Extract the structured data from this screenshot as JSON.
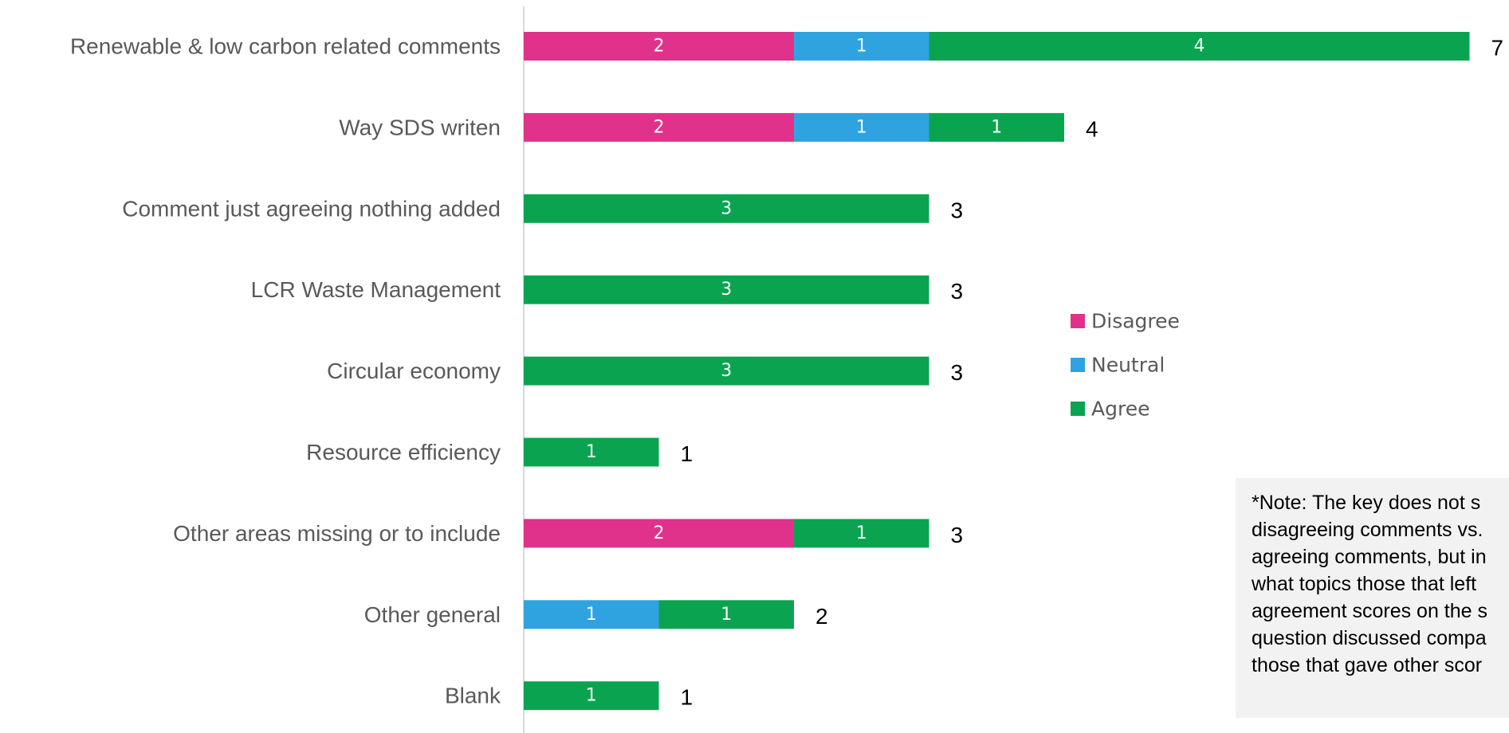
{
  "chart_data": {
    "type": "bar",
    "orientation": "horizontal",
    "stacked": true,
    "categories": [
      "Renewable & low carbon related comments",
      "Way SDS writen",
      "Comment just agreeing nothing added",
      "LCR Waste Management",
      "Circular economy",
      "Resource efficiency",
      "Other areas missing or to include",
      "Other general",
      "Blank"
    ],
    "series": [
      {
        "name": "Disagree",
        "color": "#e0328a",
        "values": [
          2,
          2,
          0,
          0,
          0,
          0,
          2,
          0,
          0
        ]
      },
      {
        "name": "Neutral",
        "color": "#2ea3e0",
        "values": [
          1,
          1,
          0,
          0,
          0,
          0,
          0,
          1,
          0
        ]
      },
      {
        "name": "Agree",
        "color": "#0aa451",
        "values": [
          4,
          1,
          3,
          3,
          3,
          1,
          1,
          1,
          1
        ]
      }
    ],
    "totals": [
      7,
      4,
      3,
      3,
      3,
      1,
      3,
      2,
      1
    ],
    "xlim": [
      0,
      7
    ],
    "grid": false,
    "data_labels": true,
    "legend_position": "center-right",
    "title": "",
    "xlabel": "",
    "ylabel": ""
  },
  "note": {
    "text": "*Note: The key does not s\ndisagreeing comments vs.\nagreeing comments, but in\nwhat topics those that left\nagreement scores on the s\nquestion discussed compa\nthose that gave other scor"
  }
}
